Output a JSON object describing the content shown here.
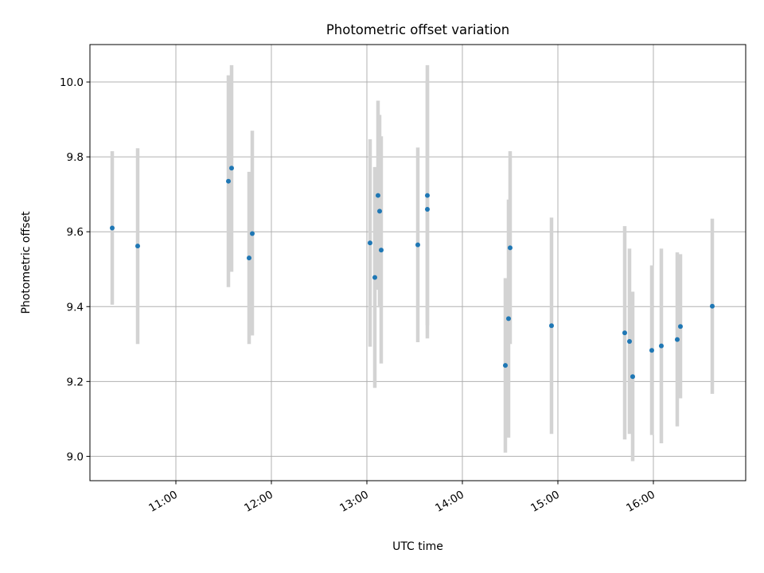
{
  "chart_data": {
    "type": "scatter",
    "title": "Photometric offset variation",
    "xlabel": "UTC time",
    "ylabel": "Photometric offset",
    "x_axis": "time",
    "xlim": [
      "10:06",
      "16:58"
    ],
    "ylim": [
      8.935,
      10.1
    ],
    "x_ticks": [
      "11:00",
      "12:00",
      "13:00",
      "14:00",
      "15:00",
      "16:00"
    ],
    "y_ticks": [
      9.0,
      9.2,
      9.4,
      9.6,
      9.8,
      10.0
    ],
    "y_tick_labels": [
      "9.0",
      "9.2",
      "9.4",
      "9.6",
      "9.8",
      "10.0"
    ],
    "grid": true,
    "point_color": "#1f77b4",
    "errorbar_color": "#d3d3d3",
    "points": [
      {
        "x": "10:20",
        "y": 9.61,
        "ylow": 9.405,
        "yhigh": 9.815
      },
      {
        "x": "10:36",
        "y": 9.562,
        "ylow": 9.3,
        "yhigh": 9.823
      },
      {
        "x": "11:33",
        "y": 9.735,
        "ylow": 9.452,
        "yhigh": 10.018
      },
      {
        "x": "11:35",
        "y": 9.77,
        "ylow": 9.493,
        "yhigh": 10.045
      },
      {
        "x": "11:46",
        "y": 9.53,
        "ylow": 9.3,
        "yhigh": 9.76
      },
      {
        "x": "11:48",
        "y": 9.595,
        "ylow": 9.323,
        "yhigh": 9.87
      },
      {
        "x": "13:02",
        "y": 9.57,
        "ylow": 9.293,
        "yhigh": 9.847
      },
      {
        "x": "13:05",
        "y": 9.478,
        "ylow": 9.183,
        "yhigh": 9.773
      },
      {
        "x": "13:07",
        "y": 9.697,
        "ylow": 9.445,
        "yhigh": 9.95
      },
      {
        "x": "13:08",
        "y": 9.655,
        "ylow": 9.398,
        "yhigh": 9.912
      },
      {
        "x": "13:09",
        "y": 9.551,
        "ylow": 9.248,
        "yhigh": 9.855
      },
      {
        "x": "13:32",
        "y": 9.565,
        "ylow": 9.305,
        "yhigh": 9.825
      },
      {
        "x": "13:38",
        "y": 9.697,
        "ylow": 9.35,
        "yhigh": 10.045
      },
      {
        "x": "13:38",
        "y": 9.66,
        "ylow": 9.315,
        "yhigh": 10.005
      },
      {
        "x": "14:27",
        "y": 9.243,
        "ylow": 9.01,
        "yhigh": 9.476
      },
      {
        "x": "14:29",
        "y": 9.368,
        "ylow": 9.05,
        "yhigh": 9.686
      },
      {
        "x": "14:30",
        "y": 9.557,
        "ylow": 9.3,
        "yhigh": 9.815
      },
      {
        "x": "14:56",
        "y": 9.349,
        "ylow": 9.06,
        "yhigh": 9.638
      },
      {
        "x": "15:42",
        "y": 9.33,
        "ylow": 9.045,
        "yhigh": 9.615
      },
      {
        "x": "15:45",
        "y": 9.307,
        "ylow": 9.06,
        "yhigh": 9.555
      },
      {
        "x": "15:47",
        "y": 9.213,
        "ylow": 8.987,
        "yhigh": 9.44
      },
      {
        "x": "15:59",
        "y": 9.283,
        "ylow": 9.057,
        "yhigh": 9.51
      },
      {
        "x": "16:05",
        "y": 9.295,
        "ylow": 9.035,
        "yhigh": 9.555
      },
      {
        "x": "16:15",
        "y": 9.312,
        "ylow": 9.08,
        "yhigh": 9.545
      },
      {
        "x": "16:17",
        "y": 9.347,
        "ylow": 9.155,
        "yhigh": 9.54
      },
      {
        "x": "16:37",
        "y": 9.401,
        "ylow": 9.167,
        "yhigh": 9.635
      }
    ]
  }
}
